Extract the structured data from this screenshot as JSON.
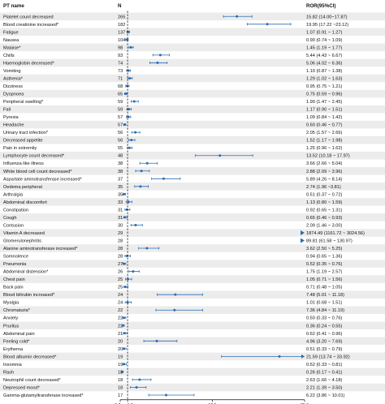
{
  "chart_data": {
    "type": "forest",
    "headers": {
      "name": "PT name",
      "count": "N",
      "ror": "ROR(95%CI)"
    },
    "x_ticks": [
      "0.0",
      "1.0",
      "12.5",
      "25.0"
    ],
    "xlim": [
      0,
      25
    ],
    "reference_line": 1,
    "arrow_color": "#2b6cb0",
    "point_color": "#2b6cb0",
    "stripe_color": "#ececec",
    "rows": [
      {
        "name": "Platelet count decreased",
        "n": "265",
        "ror_text": "15.82 (14.00~17.87)",
        "ror": 15.82,
        "lo": 14.0,
        "hi": 17.87
      },
      {
        "name": "Blood creatinine increased*",
        "n": "182",
        "ror_text": "19.95 (17.22 ~23.12)",
        "ror": 19.95,
        "lo": 17.22,
        "hi": 23.12
      },
      {
        "name": "Fatigue",
        "n": "137",
        "ror_text": "1.07 (0.91 ~ 1.27)",
        "ror": 1.07,
        "lo": 0.91,
        "hi": 1.27
      },
      {
        "name": "Nausea",
        "n": "104",
        "ror_text": "0.90 (0.74 ~ 1.09)",
        "ror": 0.9,
        "lo": 0.74,
        "hi": 1.09
      },
      {
        "name": "Malaise*",
        "n": "98",
        "ror_text": "1.45 (1.19 ~ 1.77)",
        "ror": 1.45,
        "lo": 1.19,
        "hi": 1.77
      },
      {
        "name": "Chills",
        "n": "93",
        "ror_text": "5.44 (4.43 ~ 6.67)",
        "ror": 5.44,
        "lo": 4.43,
        "hi": 6.67
      },
      {
        "name": "Haemoglobin decreased*",
        "n": "74",
        "ror_text": "5.06 (4.02 ~ 6.36)",
        "ror": 5.06,
        "lo": 4.02,
        "hi": 6.36
      },
      {
        "name": "Vomiting",
        "n": "73",
        "ror_text": "1.10 (0.87 ~ 1.38)",
        "ror": 1.1,
        "lo": 0.87,
        "hi": 1.38
      },
      {
        "name": "Asthenia*",
        "n": "71",
        "ror_text": "1.29 (1.02 ~ 1.63)",
        "ror": 1.29,
        "lo": 1.02,
        "hi": 1.63
      },
      {
        "name": "Dizziness",
        "n": "68",
        "ror_text": "0.95 (0.75 ~ 1.21)",
        "ror": 0.95,
        "lo": 0.75,
        "hi": 1.21
      },
      {
        "name": "Dyspnoea",
        "n": "65",
        "ror_text": "0.75 (0.59 ~ 0.96)",
        "ror": 0.75,
        "lo": 0.59,
        "hi": 0.96
      },
      {
        "name": "Peripheral swelling*",
        "n": "59",
        "ror_text": "1.90 (1.47 ~ 2.45)",
        "ror": 1.9,
        "lo": 1.47,
        "hi": 2.45
      },
      {
        "name": "Fall",
        "n": "59",
        "ror_text": "1.17 (0.90 ~ 1.51)",
        "ror": 1.17,
        "lo": 0.9,
        "hi": 1.51
      },
      {
        "name": "Pyrexia",
        "n": "57",
        "ror_text": "1.09 (0.84 ~ 1.42)",
        "ror": 1.09,
        "lo": 0.84,
        "hi": 1.42
      },
      {
        "name": "Headache",
        "n": "57",
        "ror_text": "0.60 (0.46 ~ 0.77)",
        "ror": 0.6,
        "lo": 0.46,
        "hi": 0.77
      },
      {
        "name": "Urinary tract infection*",
        "n": "56",
        "ror_text": "2.05 (1.57 ~ 2.66)",
        "ror": 2.05,
        "lo": 1.57,
        "hi": 2.66
      },
      {
        "name": "Decreased appetite",
        "n": "56",
        "ror_text": "1.52 (1.17 ~ 1.98)",
        "ror": 1.52,
        "lo": 1.17,
        "hi": 1.98
      },
      {
        "name": "Pain in extremity",
        "n": "55",
        "ror_text": "1.25 (0.96 ~ 1.62)",
        "ror": 1.25,
        "lo": 0.96,
        "hi": 1.62
      },
      {
        "name": "Lymphocyte count decreased*",
        "n": "48",
        "ror_text": "13.52 (10.18 ~ 17.97)",
        "ror": 13.52,
        "lo": 10.18,
        "hi": 17.97
      },
      {
        "name": "Influenza like illness",
        "n": "38",
        "ror_text": "3.66 (2.66 ~ 5.04)",
        "ror": 3.66,
        "lo": 2.66,
        "hi": 5.04
      },
      {
        "name": "White blood cell count decreased*",
        "n": "38",
        "ror_text": "2.88 (2.09 ~ 3.96)",
        "ror": 2.88,
        "lo": 2.09,
        "hi": 3.96
      },
      {
        "name": "Aspartate aminotransferase increased*",
        "n": "37",
        "ror_text": "5.89 (4.26 ~ 8.14)",
        "ror": 5.89,
        "lo": 4.26,
        "hi": 8.14
      },
      {
        "name": "Oedema peripheral",
        "n": "35",
        "ror_text": "2.74 (1.96 ~3.81)",
        "ror": 2.74,
        "lo": 1.96,
        "hi": 3.81
      },
      {
        "name": "Arthralgia",
        "n": "35",
        "ror_text": "0.51 (0.37 ~ 0.72)",
        "ror": 0.51,
        "lo": 0.37,
        "hi": 0.72
      },
      {
        "name": "Abdominal discomfort",
        "n": "33",
        "ror_text": "1.13 (0.80 ~ 1.59)",
        "ror": 1.13,
        "lo": 0.8,
        "hi": 1.59
      },
      {
        "name": "Constipation",
        "n": "31",
        "ror_text": "0.92 (0.65 ~ 1.31)",
        "ror": 0.92,
        "lo": 0.65,
        "hi": 1.31
      },
      {
        "name": "Cough",
        "n": "31",
        "ror_text": "0.65 (0.46 ~ 0.93)",
        "ror": 0.65,
        "lo": 0.46,
        "hi": 0.93
      },
      {
        "name": "Contusion",
        "n": "30",
        "ror_text": "2.09 (1.46 ~ 3.00)",
        "ror": 2.09,
        "lo": 1.46,
        "hi": 3.0
      },
      {
        "name": "Vitamin A decreased",
        "n": "29",
        "ror_text": "1874.49 (1161.72 ~ 3024.56)",
        "ror": 1874.49,
        "lo": 1161.72,
        "hi": 3024.56
      },
      {
        "name": "Glomerulonephritis",
        "n": "28",
        "ror_text": "89.81 (61.58 ~ 130.97)",
        "ror": 89.81,
        "lo": 61.58,
        "hi": 130.97
      },
      {
        "name": "Alanine aminotransferase increased*",
        "n": "28",
        "ror_text": "3.62 (2.50 ~ 5.25)",
        "ror": 3.62,
        "lo": 2.5,
        "hi": 5.25
      },
      {
        "name": "Somnolence",
        "n": "28",
        "ror_text": "0.94 (0.65 ~ 1.36)",
        "ror": 0.94,
        "lo": 0.65,
        "hi": 1.36
      },
      {
        "name": "Pneumonia",
        "n": "27",
        "ror_text": "0.52 (0.35 ~ 0.76)",
        "ror": 0.52,
        "lo": 0.35,
        "hi": 0.76
      },
      {
        "name": "Abdominal distension*",
        "n": "26",
        "ror_text": "1.75 (1.19 ~ 2.57)",
        "ror": 1.75,
        "lo": 1.19,
        "hi": 2.57
      },
      {
        "name": "Chest pain",
        "n": "25",
        "ror_text": "1.05 (0.71 ~ 1.56)",
        "ror": 1.05,
        "lo": 0.71,
        "hi": 1.56
      },
      {
        "name": "Back pain",
        "n": "25",
        "ror_text": "0.71 (0.48 ~ 1.05)",
        "ror": 0.71,
        "lo": 0.48,
        "hi": 1.05
      },
      {
        "name": "Blood bilirubin increased*",
        "n": "24",
        "ror_text": "7.48 (5.01 ~ 11.18)",
        "ror": 7.48,
        "lo": 5.01,
        "hi": 11.18
      },
      {
        "name": "Myalgia",
        "n": "24",
        "ror_text": "1.01 (0.68 ~ 1.51)",
        "ror": 1.01,
        "lo": 0.68,
        "hi": 1.51
      },
      {
        "name": "Chromaturia*",
        "n": "22",
        "ror_text": "7.36 (4.84 ~ 11.19)",
        "ror": 7.36,
        "lo": 4.84,
        "hi": 11.19
      },
      {
        "name": "Anxiety",
        "n": "22",
        "ror_text": "0.50 (0.33 ~ 0.76)",
        "ror": 0.5,
        "lo": 0.33,
        "hi": 0.76
      },
      {
        "name": "Pruritus",
        "n": "22",
        "ror_text": "0.36 (0.24 ~ 0.55)",
        "ror": 0.36,
        "lo": 0.24,
        "hi": 0.55
      },
      {
        "name": "Abdominal pain",
        "n": "21",
        "ror_text": "0.62 (0.41 ~ 0.96)",
        "ror": 0.62,
        "lo": 0.41,
        "hi": 0.96
      },
      {
        "name": "Feeling cold*",
        "n": "20",
        "ror_text": "4.96 (3.20 ~ 7.69)",
        "ror": 4.96,
        "lo": 3.2,
        "hi": 7.69
      },
      {
        "name": "Erythema",
        "n": "20",
        "ror_text": "0.51 (0.33 ~ 0.79)",
        "ror": 0.51,
        "lo": 0.33,
        "hi": 0.79
      },
      {
        "name": "Blood albumin decreased*",
        "n": "19",
        "ror_text": "21.59 (13.74 ~ 33.92)",
        "ror": 21.59,
        "lo": 13.74,
        "hi": 33.92
      },
      {
        "name": "Insomnia",
        "n": "19",
        "ror_text": "0.52 (0.33 ~ 0.81)",
        "ror": 0.52,
        "lo": 0.33,
        "hi": 0.81
      },
      {
        "name": "Rash",
        "n": "18",
        "ror_text": "0.26 (0.17 ~ 0.41)",
        "ror": 0.26,
        "lo": 0.17,
        "hi": 0.41
      },
      {
        "name": "Neutrophil count decreased*",
        "n": "18",
        "ror_text": "2.63 (1.66 ~ 4.18)",
        "ror": 2.63,
        "lo": 1.66,
        "hi": 4.18
      },
      {
        "name": "Depressed mood*",
        "n": "18",
        "ror_text": "2.21 (1.39 ~ 3.50)",
        "ror": 2.21,
        "lo": 1.39,
        "hi": 3.5
      },
      {
        "name": "Gamma-glutamyltransferase increased*",
        "n": "17",
        "ror_text": "6.22 (3.86 ~ 10.01)",
        "ror": 6.22,
        "lo": 3.86,
        "hi": 10.01
      }
    ]
  }
}
